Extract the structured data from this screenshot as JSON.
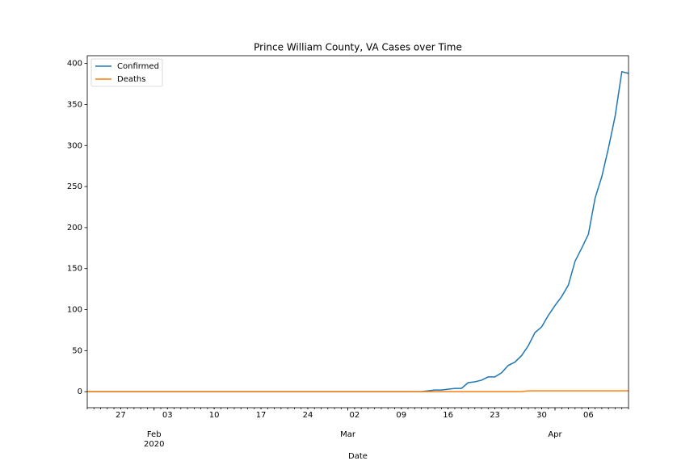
{
  "chart_data": {
    "type": "line",
    "title": "Prince William County, VA Cases over Time",
    "xlabel": "Date",
    "x": [
      "2020-01-22",
      "2020-01-23",
      "2020-01-24",
      "2020-01-25",
      "2020-01-26",
      "2020-01-27",
      "2020-01-28",
      "2020-01-29",
      "2020-01-30",
      "2020-01-31",
      "2020-02-01",
      "2020-02-02",
      "2020-02-03",
      "2020-02-04",
      "2020-02-05",
      "2020-02-06",
      "2020-02-07",
      "2020-02-08",
      "2020-02-09",
      "2020-02-10",
      "2020-02-11",
      "2020-02-12",
      "2020-02-13",
      "2020-02-14",
      "2020-02-15",
      "2020-02-16",
      "2020-02-17",
      "2020-02-18",
      "2020-02-19",
      "2020-02-20",
      "2020-02-21",
      "2020-02-22",
      "2020-02-23",
      "2020-02-24",
      "2020-02-25",
      "2020-02-26",
      "2020-02-27",
      "2020-02-28",
      "2020-02-29",
      "2020-03-01",
      "2020-03-02",
      "2020-03-03",
      "2020-03-04",
      "2020-03-05",
      "2020-03-06",
      "2020-03-07",
      "2020-03-08",
      "2020-03-09",
      "2020-03-10",
      "2020-03-11",
      "2020-03-12",
      "2020-03-13",
      "2020-03-14",
      "2020-03-15",
      "2020-03-16",
      "2020-03-17",
      "2020-03-18",
      "2020-03-19",
      "2020-03-20",
      "2020-03-21",
      "2020-03-22",
      "2020-03-23",
      "2020-03-24",
      "2020-03-25",
      "2020-03-26",
      "2020-03-27",
      "2020-03-28",
      "2020-03-29",
      "2020-03-30",
      "2020-03-31",
      "2020-04-01",
      "2020-04-02",
      "2020-04-03",
      "2020-04-04",
      "2020-04-05",
      "2020-04-06",
      "2020-04-07",
      "2020-04-08",
      "2020-04-09",
      "2020-04-10",
      "2020-04-11",
      "2020-04-12"
    ],
    "series": [
      {
        "name": "Confirmed",
        "color": "#1f77b4",
        "values": [
          0,
          0,
          0,
          0,
          0,
          0,
          0,
          0,
          0,
          0,
          0,
          0,
          0,
          0,
          0,
          0,
          0,
          0,
          0,
          0,
          0,
          0,
          0,
          0,
          0,
          0,
          0,
          0,
          0,
          0,
          0,
          0,
          0,
          0,
          0,
          0,
          0,
          0,
          0,
          0,
          0,
          0,
          0,
          0,
          0,
          0,
          0,
          0,
          0,
          0,
          0,
          1,
          2,
          2,
          3,
          4,
          4,
          11,
          12,
          14,
          18,
          18,
          23,
          32,
          36,
          44,
          56,
          72,
          79,
          93,
          105,
          116,
          130,
          159,
          175,
          192,
          236,
          262,
          297,
          336,
          390,
          388
        ]
      },
      {
        "name": "Deaths",
        "color": "#ff7f0e",
        "values": [
          0,
          0,
          0,
          0,
          0,
          0,
          0,
          0,
          0,
          0,
          0,
          0,
          0,
          0,
          0,
          0,
          0,
          0,
          0,
          0,
          0,
          0,
          0,
          0,
          0,
          0,
          0,
          0,
          0,
          0,
          0,
          0,
          0,
          0,
          0,
          0,
          0,
          0,
          0,
          0,
          0,
          0,
          0,
          0,
          0,
          0,
          0,
          0,
          0,
          0,
          0,
          0,
          0,
          0,
          0,
          0,
          0,
          0,
          0,
          0,
          0,
          0,
          0,
          0,
          0,
          0,
          1,
          1,
          1,
          1,
          1,
          1,
          1,
          1,
          1,
          1,
          1,
          1,
          1,
          1,
          1,
          1
        ]
      }
    ],
    "xlim": [
      "2020-01-22",
      "2020-04-12"
    ],
    "xticks": [
      {
        "value": "2020-01-27",
        "label": "27"
      },
      {
        "value": "2020-02-03",
        "label": "03"
      },
      {
        "value": "2020-02-10",
        "label": "10"
      },
      {
        "value": "2020-02-17",
        "label": "17"
      },
      {
        "value": "2020-02-24",
        "label": "24"
      },
      {
        "value": "2020-03-02",
        "label": "02"
      },
      {
        "value": "2020-03-09",
        "label": "09"
      },
      {
        "value": "2020-03-16",
        "label": "16"
      },
      {
        "value": "2020-03-23",
        "label": "23"
      },
      {
        "value": "2020-03-30",
        "label": "30"
      },
      {
        "value": "2020-04-06",
        "label": "06"
      }
    ],
    "xticks_major": [
      {
        "value": "2020-02-01",
        "label": "Feb"
      },
      {
        "value": "2020-03-01",
        "label": "Mar"
      },
      {
        "value": "2020-04-01",
        "label": "Apr"
      }
    ],
    "x_year_label": {
      "value": "2020-02-01",
      "label": "2020"
    },
    "ylim": [
      -19.5,
      409.5
    ],
    "yticks": [
      0,
      50,
      100,
      150,
      200,
      250,
      300,
      350,
      400
    ],
    "grid": false,
    "legend": "upper left"
  }
}
